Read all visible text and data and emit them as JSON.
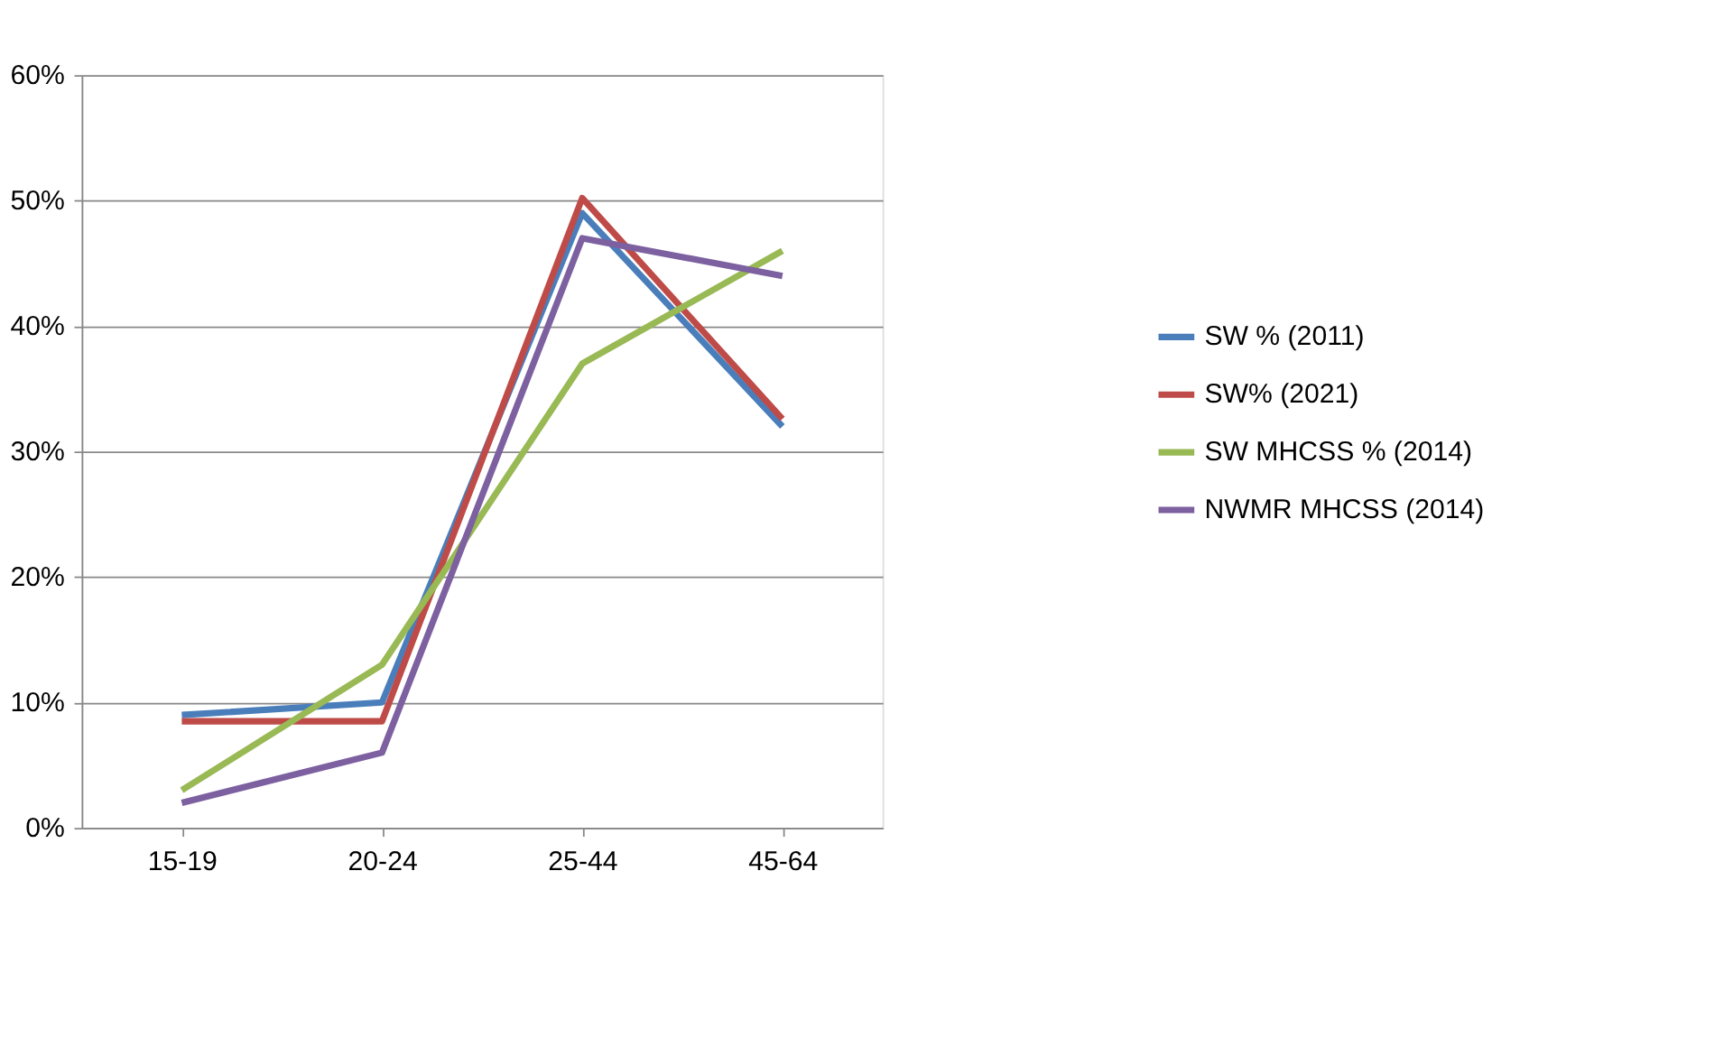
{
  "chart_data": {
    "type": "line",
    "categories": [
      "15-19",
      "20-24",
      "25-44",
      "45-64"
    ],
    "series": [
      {
        "name": "SW % (2011)",
        "color": "#4a7ebb",
        "values": [
          9,
          10,
          49,
          32
        ]
      },
      {
        "name": "SW% (2021)",
        "color": "#be4b48",
        "values": [
          8.5,
          8.5,
          50.2,
          32.6
        ]
      },
      {
        "name": "SW MHCSS % (2014)",
        "color": "#98b954",
        "values": [
          3,
          13,
          37,
          46
        ]
      },
      {
        "name": "NWMR MHCSS (2014)",
        "color": "#7d60a0",
        "values": [
          2,
          6,
          47,
          44
        ]
      }
    ],
    "ylim": [
      0,
      60
    ],
    "yticks": [
      {
        "value": 0,
        "label": "0%"
      },
      {
        "value": 10,
        "label": "10%"
      },
      {
        "value": 20,
        "label": "20%"
      },
      {
        "value": 30,
        "label": "30%"
      },
      {
        "value": 40,
        "label": "40%"
      },
      {
        "value": 50,
        "label": "50%"
      },
      {
        "value": 60,
        "label": "60%"
      }
    ],
    "grid": "y",
    "legend": "right",
    "marker": "none",
    "line_style": "solid"
  }
}
